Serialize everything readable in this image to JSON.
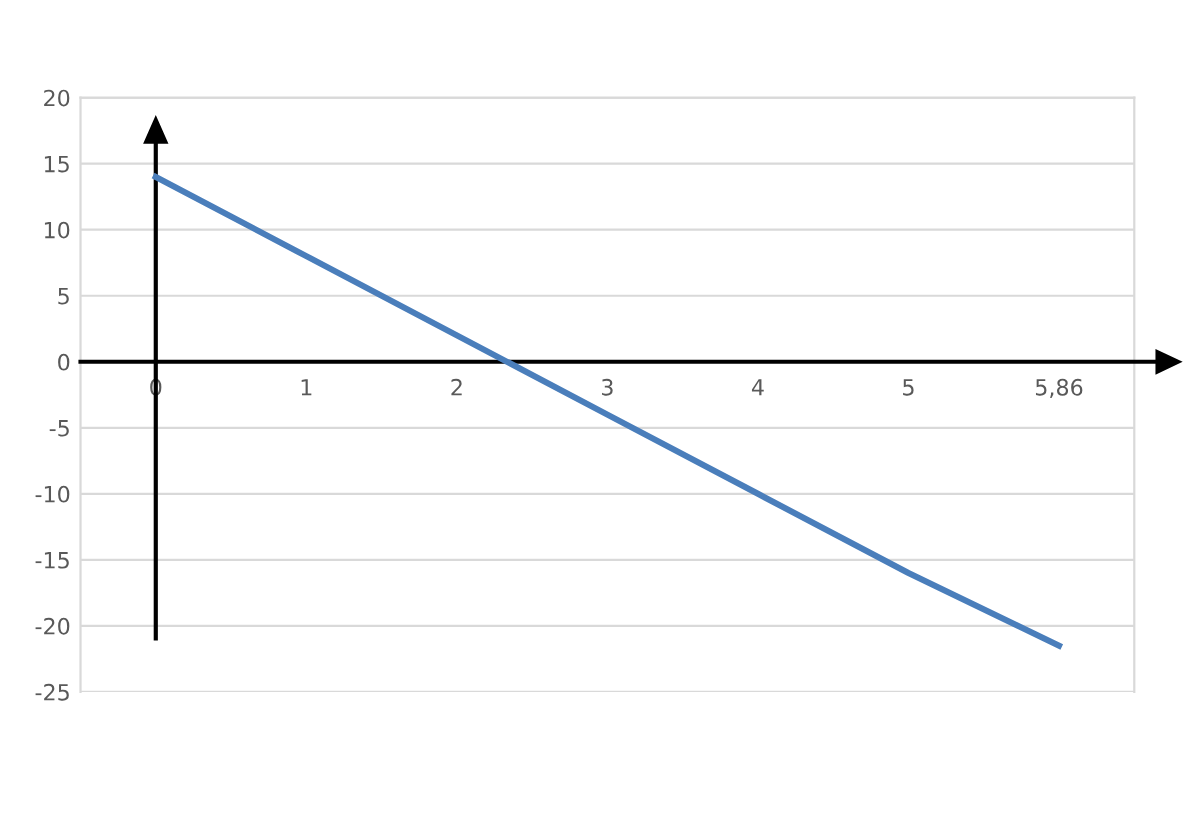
{
  "chart_data": {
    "type": "line",
    "categories": [
      "0",
      "1",
      "2",
      "3",
      "4",
      "5",
      "5,86"
    ],
    "series": [
      {
        "color": "#4a7ebb",
        "values": [
          14,
          8,
          2,
          -4,
          -10,
          -16,
          -21.5
        ]
      }
    ],
    "ylim": [
      -25,
      20
    ],
    "yticks": [
      -25,
      -20,
      -15,
      -10,
      -5,
      0,
      5,
      10,
      15,
      20
    ],
    "ref_lines": [
      {
        "axis": "x",
        "value": "0",
        "color": "#000000"
      }
    ],
    "grid": "y",
    "marker": "none",
    "line_style": "solid"
  }
}
